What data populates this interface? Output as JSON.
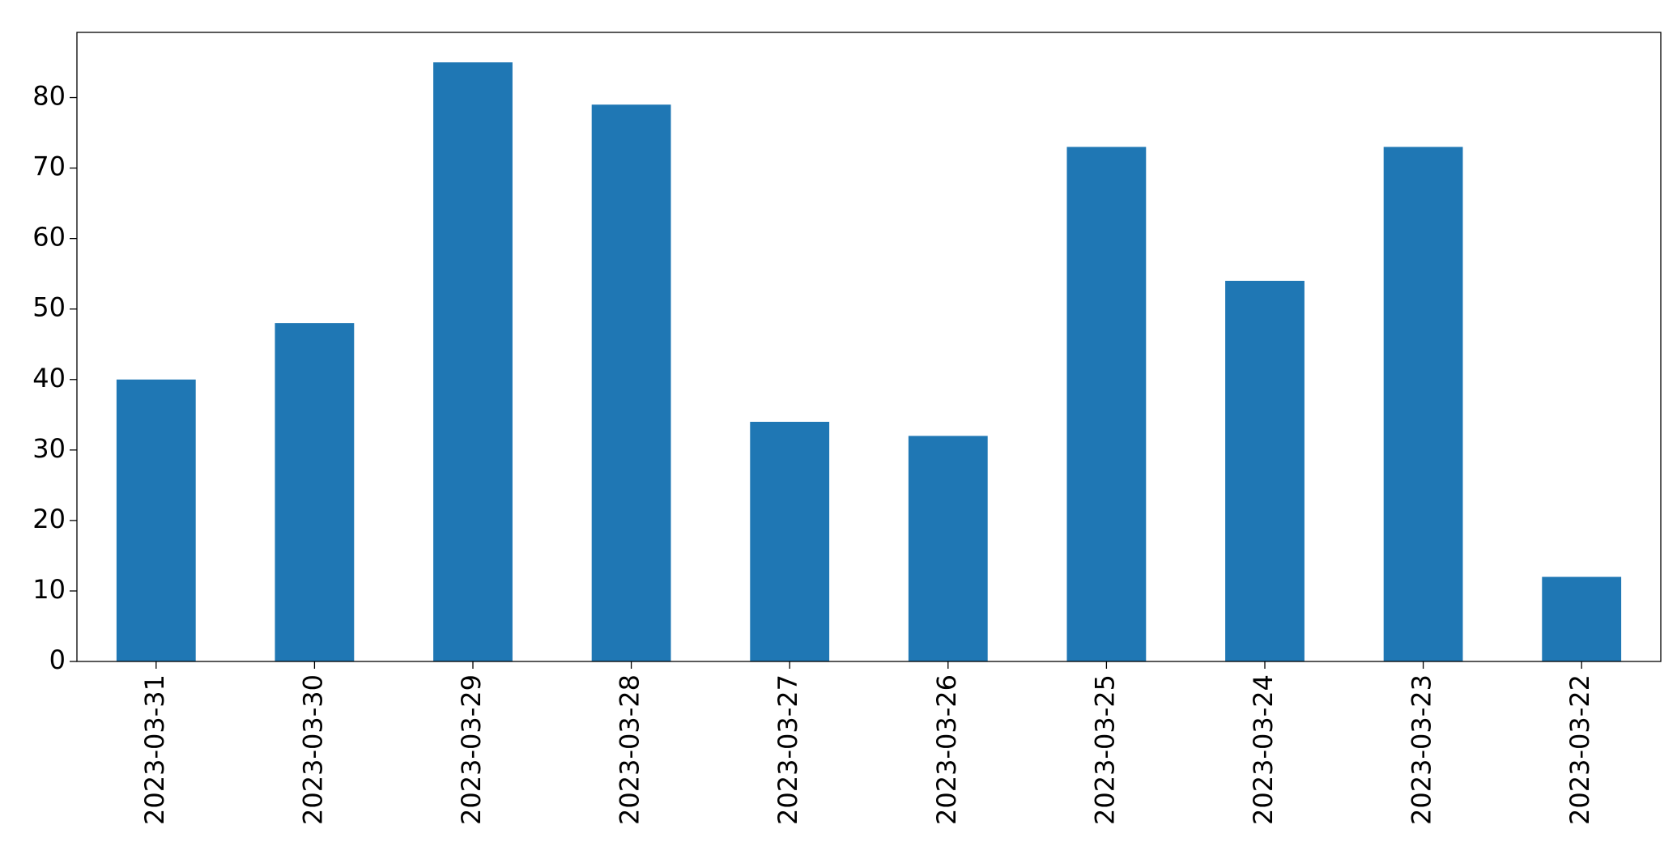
{
  "chart_data": {
    "type": "bar",
    "categories": [
      "2023-03-31",
      "2023-03-30",
      "2023-03-29",
      "2023-03-28",
      "2023-03-27",
      "2023-03-26",
      "2023-03-25",
      "2023-03-24",
      "2023-03-23",
      "2023-03-22"
    ],
    "values": [
      40,
      48,
      85,
      79,
      34,
      32,
      73,
      54,
      73,
      12
    ],
    "color": "#1f77b4",
    "ylim": [
      0,
      89.25
    ],
    "yticks": [
      0,
      10,
      20,
      30,
      40,
      50,
      60,
      70,
      80
    ],
    "grid": false
  }
}
